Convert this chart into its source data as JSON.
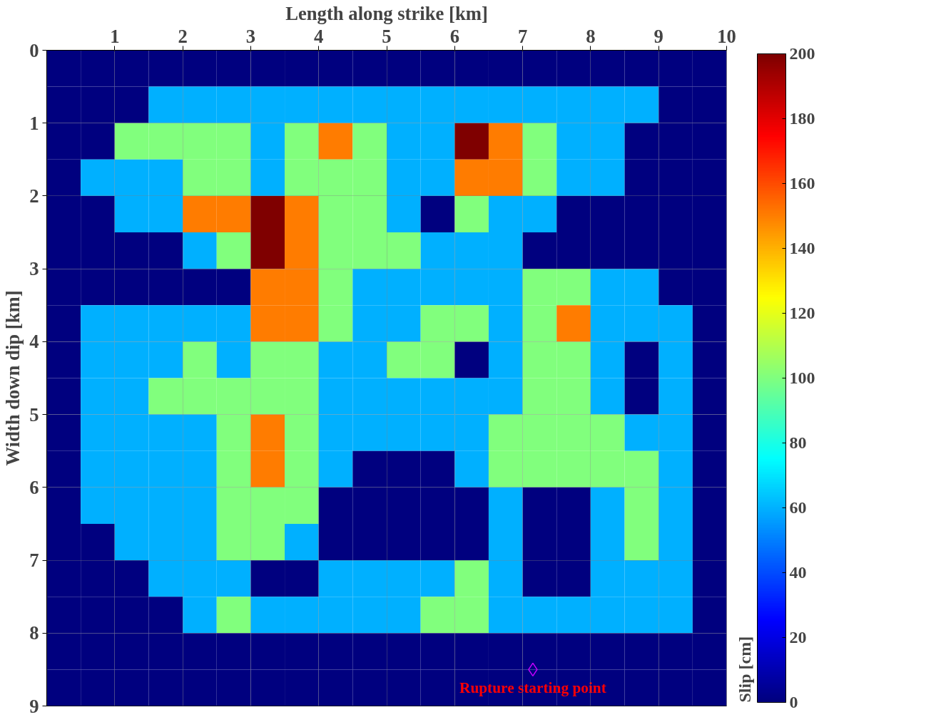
{
  "chart_data": {
    "type": "heatmap",
    "xlabel": "Length along strike [km]",
    "ylabel": "Width down dip [km]",
    "clabel": "Slip [cm]",
    "x": [
      0.25,
      0.75,
      1.25,
      1.75,
      2.25,
      2.75,
      3.25,
      3.75,
      4.25,
      4.75,
      5.25,
      5.75,
      6.25,
      6.75,
      7.25,
      7.75,
      8.25,
      8.75,
      9.25,
      9.75
    ],
    "y": [
      0.25,
      0.75,
      1.25,
      1.75,
      2.25,
      2.75,
      3.25,
      3.75,
      4.25,
      4.75,
      5.25,
      5.75,
      6.25,
      6.75,
      7.25,
      7.75,
      8.25,
      8.75
    ],
    "xlim": [
      0,
      10
    ],
    "xticks": [
      1,
      2,
      3,
      4,
      5,
      6,
      7,
      8,
      9,
      10
    ],
    "ylim": [
      9,
      0
    ],
    "yticks": [
      0,
      1,
      2,
      3,
      4,
      5,
      6,
      7,
      8,
      9
    ],
    "clim": [
      0,
      200
    ],
    "cticks": [
      0,
      20,
      40,
      60,
      80,
      100,
      120,
      140,
      160,
      180,
      200
    ],
    "grid": true,
    "cells": [
      [
        0,
        0,
        0,
        0,
        0,
        0,
        0,
        0,
        0,
        0,
        0,
        0,
        0,
        0,
        0,
        0,
        0,
        0,
        0,
        0
      ],
      [
        0,
        0,
        0,
        60,
        60,
        60,
        60,
        60,
        60,
        60,
        60,
        60,
        60,
        60,
        60,
        60,
        60,
        60,
        0,
        0
      ],
      [
        0,
        0,
        100,
        100,
        100,
        100,
        60,
        100,
        150,
        100,
        60,
        60,
        200,
        150,
        100,
        60,
        60,
        0,
        0,
        0
      ],
      [
        0,
        60,
        60,
        60,
        100,
        100,
        60,
        100,
        100,
        100,
        60,
        60,
        150,
        150,
        100,
        60,
        60,
        0,
        0,
        0
      ],
      [
        0,
        0,
        60,
        60,
        150,
        150,
        200,
        150,
        100,
        100,
        60,
        0,
        100,
        60,
        60,
        0,
        0,
        0,
        0,
        0
      ],
      [
        0,
        0,
        0,
        0,
        60,
        100,
        200,
        150,
        100,
        100,
        100,
        60,
        60,
        60,
        0,
        0,
        0,
        0,
        0,
        0
      ],
      [
        0,
        0,
        0,
        0,
        0,
        0,
        150,
        150,
        100,
        60,
        60,
        60,
        60,
        60,
        100,
        100,
        60,
        60,
        0,
        0
      ],
      [
        0,
        60,
        60,
        60,
        60,
        60,
        150,
        150,
        100,
        60,
        60,
        100,
        100,
        60,
        100,
        150,
        60,
        60,
        60,
        0
      ],
      [
        0,
        60,
        60,
        60,
        100,
        60,
        100,
        100,
        60,
        60,
        100,
        100,
        0,
        60,
        100,
        100,
        60,
        0,
        60,
        0
      ],
      [
        0,
        60,
        60,
        100,
        100,
        100,
        100,
        100,
        60,
        60,
        60,
        60,
        60,
        60,
        100,
        100,
        60,
        0,
        60,
        0
      ],
      [
        0,
        60,
        60,
        60,
        60,
        100,
        150,
        100,
        60,
        60,
        60,
        60,
        60,
        100,
        100,
        100,
        100,
        60,
        60,
        0
      ],
      [
        0,
        60,
        60,
        60,
        60,
        100,
        150,
        100,
        60,
        0,
        0,
        0,
        60,
        100,
        100,
        100,
        100,
        100,
        60,
        0
      ],
      [
        0,
        60,
        60,
        60,
        60,
        100,
        100,
        100,
        0,
        0,
        0,
        0,
        0,
        60,
        0,
        0,
        60,
        100,
        60,
        0
      ],
      [
        0,
        0,
        60,
        60,
        60,
        100,
        100,
        60,
        0,
        0,
        0,
        0,
        0,
        60,
        0,
        0,
        60,
        100,
        60,
        0
      ],
      [
        0,
        0,
        0,
        60,
        60,
        60,
        0,
        0,
        60,
        60,
        60,
        60,
        100,
        60,
        0,
        0,
        60,
        60,
        60,
        0
      ],
      [
        0,
        0,
        0,
        0,
        60,
        100,
        60,
        60,
        60,
        60,
        60,
        100,
        100,
        60,
        60,
        60,
        60,
        60,
        60,
        0
      ],
      [
        0,
        0,
        0,
        0,
        0,
        0,
        0,
        0,
        0,
        0,
        0,
        0,
        0,
        0,
        0,
        0,
        0,
        0,
        0,
        0
      ],
      [
        0,
        0,
        0,
        0,
        0,
        0,
        0,
        0,
        0,
        0,
        0,
        0,
        0,
        0,
        0,
        0,
        0,
        0,
        0,
        0
      ]
    ],
    "series": [
      {
        "type": "scatter",
        "name": "Rupture starting point",
        "color": "#c800ff",
        "marker": "diamond",
        "x": [
          7.15
        ],
        "values": [
          8.5
        ]
      }
    ]
  }
}
